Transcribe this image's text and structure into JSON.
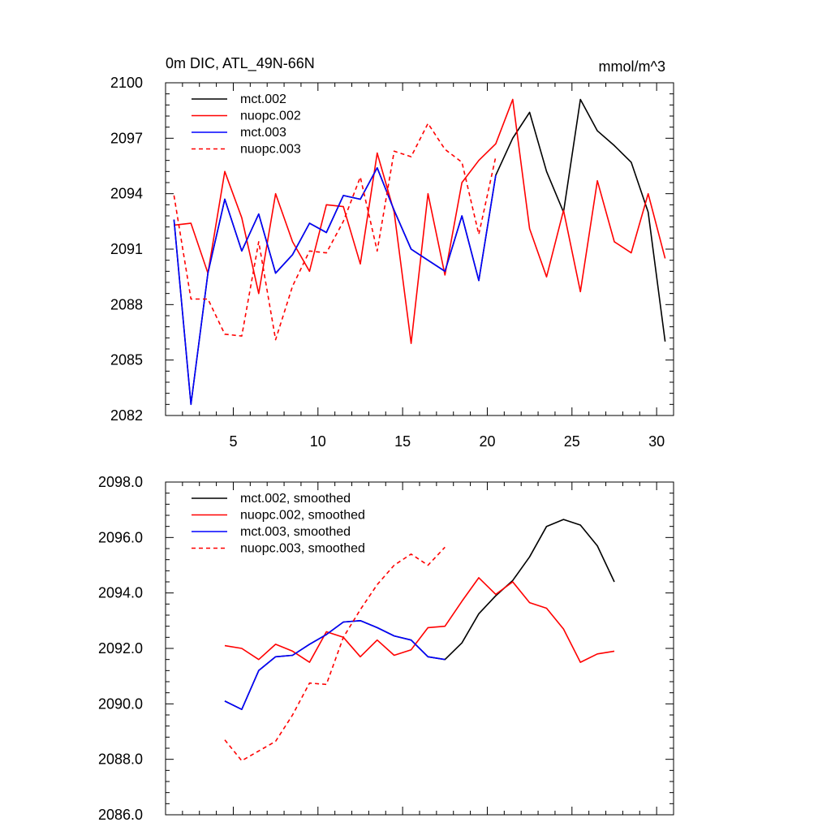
{
  "chart_data": [
    {
      "type": "line",
      "title": "0m DIC, ATL_49N-66N",
      "units": "mmol/m^3",
      "xlim": [
        1,
        31
      ],
      "ylim": [
        2082,
        2100
      ],
      "xticks": [
        5,
        10,
        15,
        20,
        25,
        30
      ],
      "xtick_labels": [
        "5",
        "10",
        "15",
        "20",
        "25",
        "30"
      ],
      "yticks": [
        2082,
        2085,
        2088,
        2091,
        2094,
        2097,
        2100
      ],
      "ytick_labels": [
        "2082",
        "2085",
        "2088",
        "2091",
        "2094",
        "2097",
        "2100"
      ],
      "legend_position": "top-left",
      "series": [
        {
          "name": "mct.002",
          "color": "#000000",
          "dash": false,
          "x": [
            1.5,
            2.5,
            3.5,
            4.5,
            5.5,
            6.5,
            7.5,
            8.5,
            9.5,
            10.5,
            11.5,
            12.5,
            13.5,
            14.5,
            15.5,
            16.5,
            17.5,
            18.5,
            19.5,
            20.5,
            21.5,
            22.5,
            23.5,
            24.5,
            25.5,
            26.5,
            27.5,
            28.5,
            29.5,
            30.5
          ],
          "values": [
            2092.6,
            2082.6,
            2089.7,
            2093.7,
            2090.9,
            2092.9,
            2089.7,
            2090.7,
            2092.4,
            2091.9,
            2093.9,
            2093.7,
            2095.4,
            2093.1,
            2091.0,
            2090.4,
            2089.8,
            2092.8,
            2089.3,
            2095.0,
            2097.0,
            2098.4,
            2095.2,
            2093.0,
            2099.1,
            2097.4,
            2096.6,
            2095.7,
            2093.0,
            2086.0
          ]
        },
        {
          "name": "nuopc.002",
          "color": "#ff0000",
          "dash": false,
          "x": [
            1.5,
            2.5,
            3.5,
            4.5,
            5.5,
            6.5,
            7.5,
            8.5,
            9.5,
            10.5,
            11.5,
            12.5,
            13.5,
            14.5,
            15.5,
            16.5,
            17.5,
            18.5,
            19.5,
            20.5,
            21.5,
            22.5,
            23.5,
            24.5,
            25.5,
            26.5,
            27.5,
            28.5,
            29.5,
            30.5
          ],
          "values": [
            2092.3,
            2092.4,
            2089.7,
            2095.2,
            2092.7,
            2088.6,
            2094.0,
            2091.4,
            2089.8,
            2093.4,
            2093.3,
            2090.2,
            2096.2,
            2093.0,
            2085.9,
            2094.0,
            2089.6,
            2094.6,
            2095.8,
            2096.7,
            2099.1,
            2092.1,
            2089.5,
            2093.1,
            2088.7,
            2094.7,
            2091.4,
            2090.8,
            2094.0,
            2090.5
          ]
        },
        {
          "name": "mct.003",
          "color": "#0000ff",
          "dash": false,
          "x": [
            1.5,
            2.5,
            3.5,
            4.5,
            5.5,
            6.5,
            7.5,
            8.5,
            9.5,
            10.5,
            11.5,
            12.5,
            13.5,
            14.5,
            15.5,
            16.5,
            17.5,
            18.5,
            19.5,
            20.5
          ],
          "values": [
            2092.6,
            2082.6,
            2089.7,
            2093.7,
            2090.9,
            2092.9,
            2089.7,
            2090.7,
            2092.4,
            2091.9,
            2093.9,
            2093.7,
            2095.4,
            2093.1,
            2091.0,
            2090.4,
            2089.8,
            2092.8,
            2089.3,
            2095.0
          ]
        },
        {
          "name": "nuopc.003",
          "color": "#ff0000",
          "dash": true,
          "x": [
            1.5,
            2.5,
            3.5,
            4.5,
            5.5,
            6.5,
            7.5,
            8.5,
            9.5,
            10.5,
            11.5,
            12.5,
            13.5,
            14.5,
            15.5,
            16.5,
            17.5,
            18.5,
            19.5,
            20.5
          ],
          "values": [
            2093.9,
            2088.3,
            2088.3,
            2086.4,
            2086.3,
            2091.4,
            2086.1,
            2089.0,
            2090.9,
            2090.8,
            2092.5,
            2094.9,
            2090.9,
            2096.3,
            2096.0,
            2097.8,
            2096.4,
            2095.7,
            2091.8,
            2096.0
          ]
        }
      ]
    },
    {
      "type": "line",
      "title": "",
      "xlim": [
        1,
        31
      ],
      "ylim": [
        2086,
        2098
      ],
      "xticks": [
        5,
        10,
        15,
        20,
        25,
        30
      ],
      "yticks": [
        2086,
        2088,
        2090,
        2092,
        2094,
        2096,
        2098
      ],
      "ytick_labels": [
        "2086.0",
        "2088.0",
        "2090.0",
        "2092.0",
        "2094.0",
        "2096.0",
        "2098.0"
      ],
      "legend_position": "top-left",
      "series": [
        {
          "name": "mct.002, smoothed",
          "color": "#000000",
          "dash": false,
          "x": [
            4.5,
            5.5,
            6.5,
            7.5,
            8.5,
            9.5,
            10.5,
            11.5,
            12.5,
            13.5,
            14.5,
            15.5,
            16.5,
            17.5,
            18.5,
            19.5,
            20.5,
            21.5,
            22.5,
            23.5,
            24.5,
            25.5,
            26.5,
            27.5
          ],
          "values": [
            2090.1,
            2089.8,
            2091.2,
            2091.7,
            2091.75,
            2092.15,
            2092.5,
            2092.95,
            2093.0,
            2092.75,
            2092.45,
            2092.3,
            2091.7,
            2091.6,
            2092.2,
            2093.25,
            2093.9,
            2094.45,
            2095.3,
            2096.4,
            2096.65,
            2096.45,
            2095.7,
            2094.4
          ]
        },
        {
          "name": "nuopc.002, smoothed",
          "color": "#ff0000",
          "dash": false,
          "x": [
            4.5,
            5.5,
            6.5,
            7.5,
            8.5,
            9.5,
            10.5,
            11.5,
            12.5,
            13.5,
            14.5,
            15.5,
            16.5,
            17.5,
            18.5,
            19.5,
            20.5,
            21.5,
            22.5,
            23.5,
            24.5,
            25.5,
            26.5,
            27.5
          ],
          "values": [
            2092.1,
            2092.0,
            2091.6,
            2092.15,
            2091.9,
            2091.5,
            2092.6,
            2092.4,
            2091.7,
            2092.3,
            2091.75,
            2091.95,
            2092.75,
            2092.8,
            2093.7,
            2094.55,
            2093.95,
            2094.4,
            2093.65,
            2093.45,
            2092.7,
            2091.5,
            2091.8,
            2091.9
          ]
        },
        {
          "name": "mct.003, smoothed",
          "color": "#0000ff",
          "dash": false,
          "x": [
            4.5,
            5.5,
            6.5,
            7.5,
            8.5,
            9.5,
            10.5,
            11.5,
            12.5,
            13.5,
            14.5,
            15.5,
            16.5,
            17.5
          ],
          "values": [
            2090.1,
            2089.8,
            2091.2,
            2091.7,
            2091.75,
            2092.15,
            2092.5,
            2092.95,
            2093.0,
            2092.75,
            2092.45,
            2092.3,
            2091.7,
            2091.6
          ]
        },
        {
          "name": "nuopc.003, smoothed",
          "color": "#ff0000",
          "dash": true,
          "x": [
            4.5,
            5.5,
            6.5,
            7.5,
            8.5,
            9.5,
            10.5,
            11.5,
            12.5,
            13.5,
            14.5,
            15.5,
            16.5,
            17.5
          ],
          "values": [
            2088.7,
            2087.95,
            2088.3,
            2088.65,
            2089.6,
            2090.75,
            2090.7,
            2092.4,
            2093.4,
            2094.3,
            2095.0,
            2095.4,
            2095.0,
            2095.65
          ]
        }
      ]
    }
  ]
}
